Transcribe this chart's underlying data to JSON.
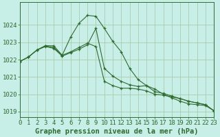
{
  "title": "Graphe pression niveau de la mer (hPa)",
  "bg_color": "#c8eee8",
  "line_color": "#2d6b2d",
  "grid_color": "#a8cca8",
  "series1": [
    1021.9,
    1022.15,
    1022.55,
    1022.8,
    1022.7,
    1022.25,
    1023.3,
    1024.1,
    1024.55,
    1024.5,
    1023.8,
    1023.05,
    1022.45,
    1021.5,
    1020.85,
    1020.5,
    1020.3,
    1020.0,
    1019.8,
    1019.6,
    1019.45,
    1019.4,
    1019.35,
    1019.05
  ],
  "series2": [
    1021.9,
    1022.15,
    1022.55,
    1022.75,
    1022.65,
    1022.2,
    1022.4,
    1022.6,
    1022.85,
    1023.8,
    1021.5,
    1021.05,
    1020.75,
    1020.55,
    1020.45,
    1020.5,
    1020.15,
    1020.05,
    1019.9,
    1019.75,
    1019.6,
    1019.5,
    1019.4,
    1019.05
  ],
  "series3": [
    1021.9,
    1022.15,
    1022.55,
    1022.8,
    1022.8,
    1022.25,
    1022.45,
    1022.7,
    1022.95,
    1022.75,
    1020.75,
    1020.5,
    1020.35,
    1020.35,
    1020.3,
    1020.2,
    1020.0,
    1019.95,
    1019.85,
    1019.75,
    1019.6,
    1019.5,
    1019.4,
    1019.05
  ],
  "xlim": [
    0,
    23
  ],
  "ylim": [
    1018.7,
    1025.3
  ],
  "yticks": [
    1019,
    1020,
    1021,
    1022,
    1023,
    1024
  ],
  "xticks": [
    0,
    1,
    2,
    3,
    4,
    5,
    6,
    7,
    8,
    9,
    10,
    11,
    12,
    13,
    14,
    15,
    16,
    17,
    18,
    19,
    20,
    21,
    22,
    23
  ],
  "tick_fontsize": 6.5,
  "xlabel_fontsize": 7.5
}
